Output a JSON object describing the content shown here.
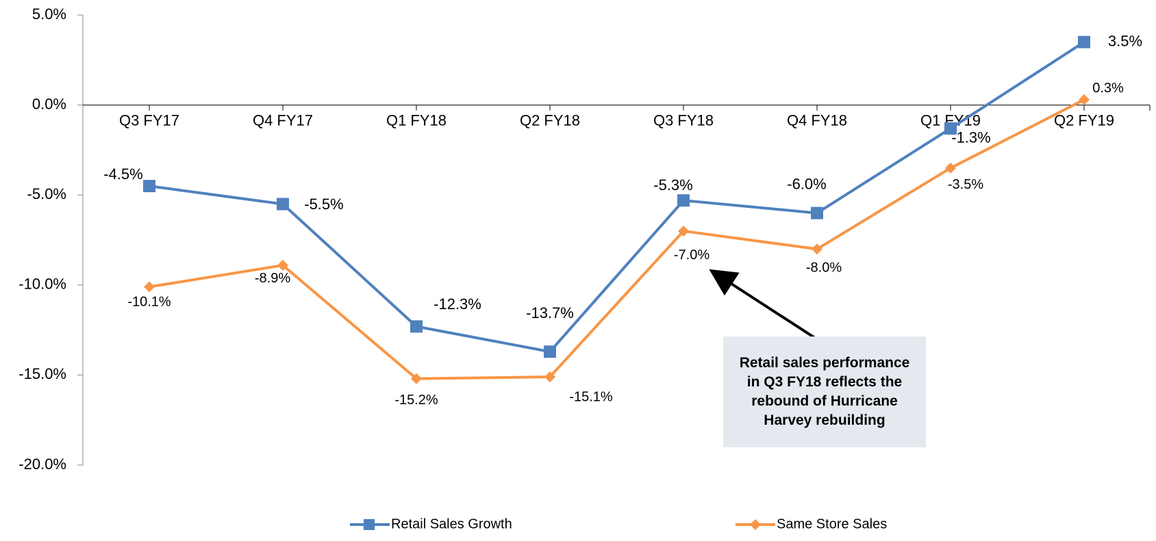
{
  "chart_data": {
    "type": "line",
    "categories": [
      "Q3 FY17",
      "Q4 FY17",
      "Q1 FY18",
      "Q2 FY18",
      "Q3 FY18",
      "Q4 FY18",
      "Q1 FY19",
      "Q2 FY19"
    ],
    "series": [
      {
        "name": "Retail Sales Growth",
        "color": "#4f81bd",
        "marker": "square",
        "values": [
          -4.5,
          -5.5,
          -12.3,
          -13.7,
          -5.3,
          -6.0,
          -1.3,
          3.5
        ],
        "value_labels": [
          "-4.5%",
          "-5.5%",
          "-12.3%",
          "-13.7%",
          "-5.3%",
          "-6.0%",
          "-1.3%",
          "3.5%"
        ]
      },
      {
        "name": "Same Store Sales",
        "color": "#f79646",
        "marker": "diamond",
        "values": [
          -10.1,
          -8.9,
          -15.2,
          -15.1,
          -7.0,
          -8.0,
          -3.5,
          0.3
        ],
        "value_labels": [
          "-10.1%",
          "-8.9%",
          "-15.2%",
          "-15.1%",
          "-7.0%",
          "-8.0%",
          "-3.5%",
          "0.3%"
        ]
      }
    ],
    "ylim": [
      -20,
      5
    ],
    "yticks": [
      {
        "value": -20,
        "label": "-20.0%"
      },
      {
        "value": -15,
        "label": "-15.0%"
      },
      {
        "value": -10,
        "label": "-10.0%"
      },
      {
        "value": -5,
        "label": "-5.0%"
      },
      {
        "value": 0,
        "label": "0.0%"
      },
      {
        "value": 5,
        "label": "5.0%"
      }
    ],
    "annotation": "Retail sales performance in Q3 FY18 reflects the rebound of Hurricane Harvey rebuilding",
    "legend": "bottom"
  }
}
